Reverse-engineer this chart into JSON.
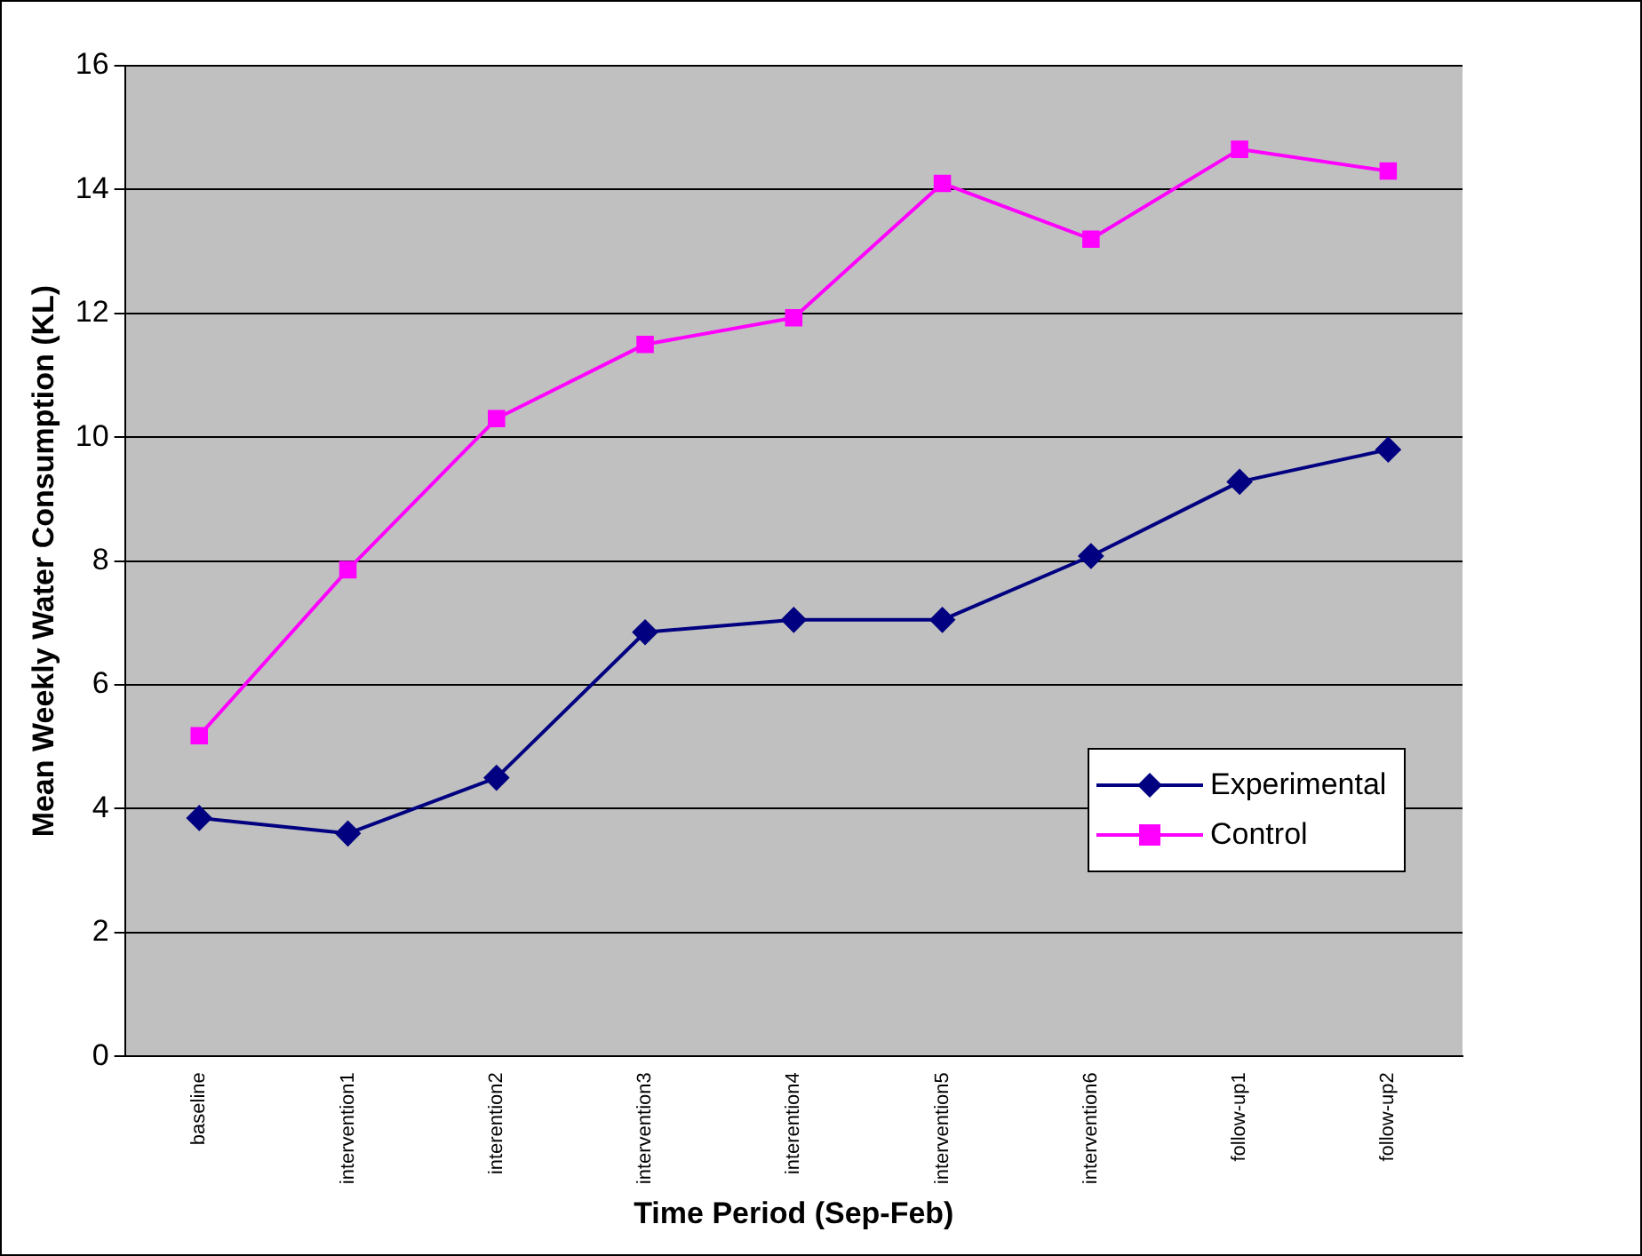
{
  "chart_data": {
    "type": "line",
    "xlabel": "Time Period (Sep-Feb)",
    "ylabel": "Mean Weekly Water Consumption (KL)",
    "categories": [
      "baseline",
      "intervention1",
      "interention2",
      "intervention3",
      "interention4",
      "intervention5",
      "intervention6",
      "follow-up1",
      "follow-up2"
    ],
    "series": [
      {
        "name": "Experimental",
        "color": "#000080",
        "marker": "diamond",
        "values": [
          3.85,
          3.6,
          4.5,
          6.85,
          7.05,
          7.05,
          8.08,
          9.28,
          9.8
        ]
      },
      {
        "name": "Control",
        "color": "#ff00ff",
        "marker": "square",
        "values": [
          5.18,
          7.86,
          10.3,
          11.5,
          11.93,
          14.1,
          13.2,
          14.65,
          14.3
        ]
      }
    ],
    "ylim": [
      0,
      16
    ],
    "yticks": [
      0,
      2,
      4,
      6,
      8,
      10,
      12,
      14,
      16
    ],
    "grid": "y",
    "legend": "bottom right",
    "line_style": "solid"
  }
}
